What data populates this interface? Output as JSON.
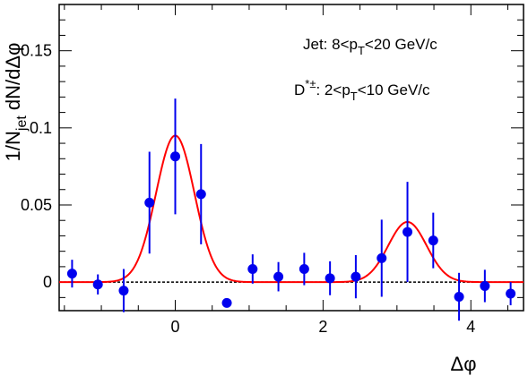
{
  "chart_data": {
    "type": "scatter",
    "xlabel": "Δφ",
    "ylabel_parts": {
      "pre": "1/N",
      "sub": "jet",
      "post": " dN/dΔφ"
    },
    "xlim": [
      -1.5708,
      4.7124
    ],
    "ylim": [
      -0.0185,
      0.18
    ],
    "x_ticks": [
      0,
      2,
      4
    ],
    "y_ticks": [
      0,
      0.05,
      0.1,
      0.15
    ],
    "y_tick_labels": [
      "0",
      "0.05",
      "0.1",
      "0.15"
    ],
    "grid": false,
    "baseline": {
      "y": 0,
      "style": "dotted"
    },
    "annotations": [
      {
        "id": "jet",
        "parts": [
          {
            "t": "Jet: 8<p"
          },
          {
            "t": "T",
            "sub": true
          },
          {
            "t": "<20 GeV/c"
          }
        ]
      },
      {
        "id": "dstar",
        "parts": [
          {
            "t": "D"
          },
          {
            "t": "*±",
            "sup": true
          },
          {
            "t": ": 2<p"
          },
          {
            "t": "T",
            "sub": true
          },
          {
            "t": "<10 GeV/c"
          }
        ]
      }
    ],
    "series": [
      {
        "marker_color": "#0000ee",
        "points": [
          {
            "x": -1.396,
            "y": 0.0055,
            "err": 0.009
          },
          {
            "x": -1.047,
            "y": -0.0015,
            "err": 0.0065
          },
          {
            "x": -0.698,
            "y": -0.0055,
            "err": 0.014
          },
          {
            "x": -0.349,
            "y": 0.0515,
            "err": 0.033
          },
          {
            "x": 0.0,
            "y": 0.0815,
            "err": 0.0375
          },
          {
            "x": 0.349,
            "y": 0.057,
            "err": 0.0325
          },
          {
            "x": 0.698,
            "y": -0.0135,
            "err": 0.0
          },
          {
            "x": 1.047,
            "y": 0.0085,
            "err": 0.0095
          },
          {
            "x": 1.396,
            "y": 0.0035,
            "err": 0.0095
          },
          {
            "x": 1.745,
            "y": 0.0085,
            "err": 0.0105
          },
          {
            "x": 2.094,
            "y": 0.0025,
            "err": 0.011
          },
          {
            "x": 2.443,
            "y": 0.0035,
            "err": 0.014
          },
          {
            "x": 2.793,
            "y": 0.0155,
            "err": 0.025
          },
          {
            "x": 3.142,
            "y": 0.0325,
            "err": 0.0325
          },
          {
            "x": 3.491,
            "y": 0.027,
            "err": 0.018
          },
          {
            "x": 3.84,
            "y": -0.0095,
            "err": 0.0155
          },
          {
            "x": 4.189,
            "y": -0.0025,
            "err": 0.0105
          },
          {
            "x": 4.538,
            "y": -0.0075,
            "err": 0.0075
          }
        ]
      }
    ],
    "fit": {
      "color": "#ff0000",
      "model": "double gaussian",
      "peaks": [
        {
          "mean": 0.0,
          "amplitude": 0.095,
          "sigma": 0.26
        },
        {
          "mean": 3.1416,
          "amplitude": 0.039,
          "sigma": 0.26
        }
      ],
      "offset": 0.0
    }
  }
}
